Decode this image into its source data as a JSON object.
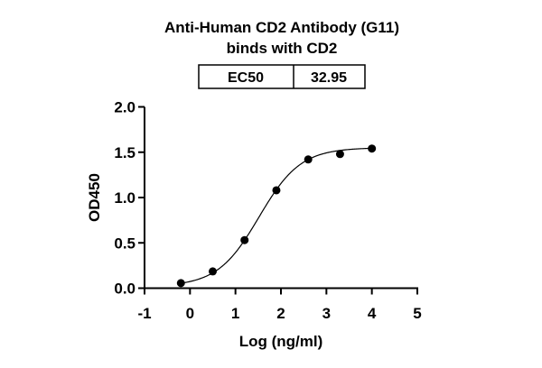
{
  "chart_data": {
    "type": "scatter",
    "title": [
      "Anti-Human CD2 Antibody (G11)",
      "binds with CD2"
    ],
    "table": {
      "label": "EC50",
      "value": "32.95"
    },
    "xlabel": "Log (ng/ml)",
    "ylabel": "OD450",
    "xlim": [
      -1,
      5
    ],
    "ylim": [
      0,
      2.0
    ],
    "xticks": [
      "-1",
      "0",
      "1",
      "2",
      "3",
      "4",
      "5"
    ],
    "yticks": [
      "0.0",
      "0.5",
      "1.0",
      "1.5",
      "2.0"
    ],
    "grid": false,
    "points": [
      {
        "x": -0.2,
        "y": 0.056
      },
      {
        "x": 0.5,
        "y": 0.185
      },
      {
        "x": 1.2,
        "y": 0.53
      },
      {
        "x": 1.9,
        "y": 1.08
      },
      {
        "x": 2.6,
        "y": 1.42
      },
      {
        "x": 3.3,
        "y": 1.48
      },
      {
        "x": 4.0,
        "y": 1.54
      }
    ],
    "fit": {
      "model": "4PL",
      "bottom": 0.02,
      "top": 1.55,
      "logEC50": 1.518,
      "hill": 0.95,
      "x_range": [
        -0.2,
        4.0
      ]
    },
    "colors": {
      "points": "#000000",
      "line": "#000000"
    }
  }
}
